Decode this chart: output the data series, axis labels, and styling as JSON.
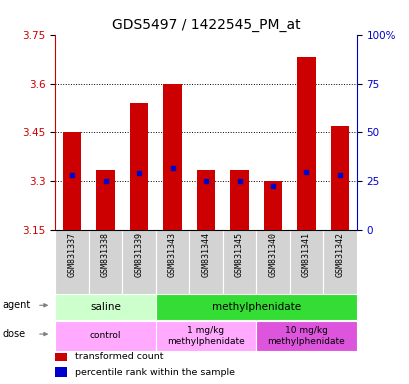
{
  "title": "GDS5497 / 1422545_PM_at",
  "samples": [
    "GSM831337",
    "GSM831338",
    "GSM831339",
    "GSM831343",
    "GSM831344",
    "GSM831345",
    "GSM831340",
    "GSM831341",
    "GSM831342"
  ],
  "bar_bottoms": [
    3.15,
    3.15,
    3.15,
    3.15,
    3.15,
    3.15,
    3.15,
    3.15,
    3.15
  ],
  "bar_tops": [
    3.45,
    3.335,
    3.54,
    3.6,
    3.335,
    3.335,
    3.3,
    3.68,
    3.47
  ],
  "percentile_values": [
    3.32,
    3.3,
    3.325,
    3.34,
    3.3,
    3.3,
    3.285,
    3.33,
    3.32
  ],
  "ylim": [
    3.15,
    3.75
  ],
  "yticks": [
    3.15,
    3.3,
    3.45,
    3.6,
    3.75
  ],
  "right_yticks": [
    0,
    25,
    50,
    75,
    100
  ],
  "right_ytick_labels": [
    "0",
    "25",
    "50",
    "75",
    "100%"
  ],
  "bar_color": "#cc0000",
  "percentile_color": "#0000cc",
  "title_fontsize": 10,
  "tick_fontsize": 7.5,
  "agent_light_green": "#ccffcc",
  "agent_bright_green": "#33dd33",
  "dose_light_pink": "#ffaaff",
  "dose_dark_pink": "#dd55dd",
  "agent_groups": [
    {
      "label": "saline",
      "start": 0,
      "end": 3,
      "color": "#ccffcc"
    },
    {
      "label": "methylphenidate",
      "start": 3,
      "end": 9,
      "color": "#33dd33"
    }
  ],
  "dose_groups": [
    {
      "label": "control",
      "start": 0,
      "end": 3,
      "color": "#ffaaff"
    },
    {
      "label": "1 mg/kg\nmethylphenidate",
      "start": 3,
      "end": 6,
      "color": "#ffaaff"
    },
    {
      "label": "10 mg/kg\nmethylphenidate",
      "start": 6,
      "end": 9,
      "color": "#dd55dd"
    }
  ],
  "legend_items": [
    {
      "color": "#cc0000",
      "label": "transformed count"
    },
    {
      "color": "#0000cc",
      "label": "percentile rank within the sample"
    }
  ]
}
